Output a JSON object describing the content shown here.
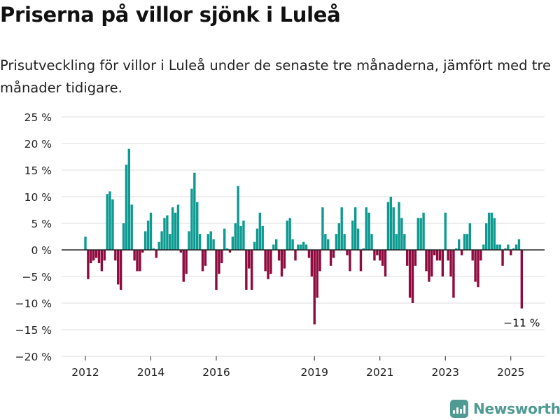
{
  "page": {
    "title": "Priserna på villor sjönk i Luleå",
    "subtitle": "Prisutveckling för villor i Luleå under de senaste tre månaderna, jämfört med tre månader tidigare.",
    "brand": "Newsworthy",
    "brand_icon": "bar-chart-icon"
  },
  "colors": {
    "positive": "#0d9a91",
    "negative": "#8f0a3e",
    "grid": "#dddddd",
    "zero_line": "#222222",
    "brand": "#4f9a92"
  },
  "chart_data": {
    "type": "bar",
    "title": "",
    "xlabel": "",
    "ylabel": "",
    "ylim": [
      -20,
      25
    ],
    "y_ticks": [
      25,
      20,
      15,
      10,
      5,
      0,
      -5,
      -10,
      -15,
      -20
    ],
    "y_tick_labels": [
      "25 %",
      "20 %",
      "15 %",
      "10 %",
      "5 %",
      "0 %",
      "−5 %",
      "−10 %",
      "−15 %",
      "−20 %"
    ],
    "x_ticks": [
      2012,
      2014,
      2016,
      2019,
      2021,
      2023,
      2025
    ],
    "x_tick_labels": [
      "2012",
      "2014",
      "2016",
      "2019",
      "2021",
      "2023",
      "2025"
    ],
    "grid": true,
    "x_unit": "month",
    "start": "2012-01",
    "values": [
      2.5,
      -5.5,
      -2.5,
      -2,
      -1.5,
      -2.5,
      -4,
      -2,
      10.5,
      11,
      9.5,
      -2,
      -6.5,
      -7.5,
      5,
      16,
      19,
      8.5,
      -2,
      -4,
      -4,
      -0.5,
      3.5,
      5.5,
      7,
      0.3,
      -1.5,
      1.5,
      3.5,
      6,
      6.5,
      3,
      8,
      7,
      8.5,
      -0.5,
      -6,
      -4.5,
      3.5,
      11.5,
      14.5,
      9,
      3,
      -4,
      -3,
      3,
      3.5,
      2,
      -7.5,
      -4.5,
      -2.5,
      4,
      0.3,
      -0.5,
      2.5,
      5,
      12,
      4.5,
      5.5,
      -7.5,
      -3.5,
      -7.5,
      1.5,
      4,
      7,
      4.5,
      -4,
      -5.5,
      -4.5,
      1,
      2,
      -2,
      -5,
      -3.5,
      5.5,
      6,
      2,
      -2,
      1,
      1,
      1.5,
      1,
      -1.5,
      -5,
      -14,
      -9,
      -4,
      8,
      3,
      2,
      -3,
      -1.5,
      3,
      5,
      8,
      3,
      -1,
      -4,
      5.5,
      8,
      4,
      -4,
      0.3,
      8,
      7,
      3,
      -2,
      -1,
      -2,
      -3,
      -5,
      9,
      10,
      8,
      3,
      9,
      6,
      3,
      -3,
      -9,
      -10,
      -3,
      6,
      6,
      7,
      -4,
      -6,
      -5,
      -1,
      -2,
      -2,
      -5,
      7,
      -2,
      -5,
      -9,
      0.3,
      2,
      -1,
      3,
      3,
      5,
      -2,
      -6,
      -7,
      -2,
      1,
      5,
      7,
      7,
      6,
      1,
      1,
      -3,
      0.3,
      1,
      -1,
      0.3,
      1,
      2,
      -11
    ],
    "annotation": {
      "label": "−11 %",
      "value": -11
    }
  }
}
